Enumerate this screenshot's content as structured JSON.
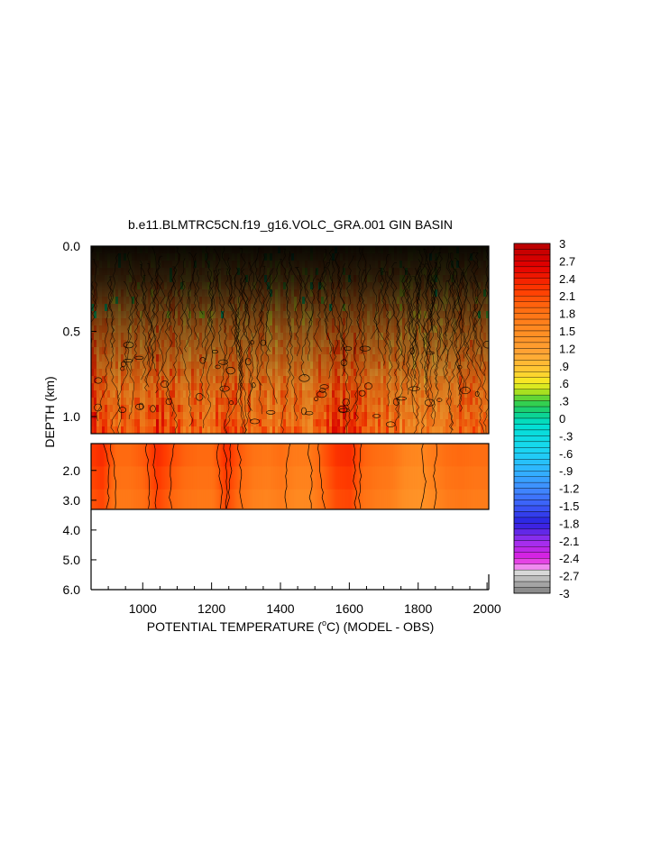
{
  "chart_data": {
    "type": "heatmap",
    "title": "b.e11.BLMTRC5CN.f19_g16.VOLC_GRA.001 GIN BASIN",
    "xlabel": {
      "before": "POTENTIAL TEMPERATURE (",
      "sup": "o",
      "after": "C) (MODEL - OBS)"
    },
    "ylabel": "DEPTH (km)",
    "xlim": [
      850,
      2005
    ],
    "x_ticks": [
      1000,
      1200,
      1400,
      1600,
      1800,
      2000
    ],
    "x_tick_labels": [
      "1000",
      "1200",
      "1400",
      "1600",
      "1800",
      "2000"
    ],
    "upper_panel": {
      "depth_range_km": [
        0.0,
        1.1
      ],
      "y_ticks": [
        0.0,
        0.5,
        1.0
      ],
      "y_tick_labels": [
        "0.0",
        "0.5",
        "1.0"
      ]
    },
    "lower_panel": {
      "depth_range_km": [
        1.1,
        6.0
      ],
      "data_bottom_km": 3.4,
      "y_ticks": [
        2.0,
        3.0,
        4.0,
        5.0,
        6.0
      ],
      "y_tick_labels": [
        "2.0",
        "3.0",
        "4.0",
        "5.0",
        "6.0"
      ]
    },
    "colorbar": {
      "min": -3.0,
      "max": 3.0,
      "labels": [
        "3",
        "2.7",
        "2.4",
        "2.1",
        "1.8",
        "1.5",
        "1.2",
        ".9",
        ".6",
        ".3",
        "0",
        "-.3",
        "-.6",
        "-.9",
        "-1.2",
        "-1.5",
        "-1.8",
        "-2.1",
        "-2.4",
        "-2.7",
        "-3"
      ],
      "stops": [
        {
          "v": 3.0,
          "c": "#b80000"
        },
        {
          "v": 2.6,
          "c": "#e40000"
        },
        {
          "v": 2.2,
          "c": "#ff3a00"
        },
        {
          "v": 1.9,
          "c": "#ff6a10"
        },
        {
          "v": 1.5,
          "c": "#ff8c22"
        },
        {
          "v": 1.1,
          "c": "#ffa535"
        },
        {
          "v": 0.8,
          "c": "#ffcc33"
        },
        {
          "v": 0.6,
          "c": "#f4ee20"
        },
        {
          "v": 0.45,
          "c": "#a8e020"
        },
        {
          "v": 0.3,
          "c": "#3fd040"
        },
        {
          "v": 0.1,
          "c": "#10d080"
        },
        {
          "v": -0.1,
          "c": "#00e0d0"
        },
        {
          "v": -0.5,
          "c": "#18d8f0"
        },
        {
          "v": -0.9,
          "c": "#30b4ff"
        },
        {
          "v": -1.2,
          "c": "#3f8cff"
        },
        {
          "v": -1.5,
          "c": "#3c5cf8"
        },
        {
          "v": -1.8,
          "c": "#2a20e0"
        },
        {
          "v": -2.1,
          "c": "#9a30f0"
        },
        {
          "v": -2.4,
          "c": "#e020e0"
        },
        {
          "v": -2.55,
          "c": "#f08af0"
        },
        {
          "v": -2.65,
          "c": "#d8d8d8"
        },
        {
          "v": -2.8,
          "c": "#b0b0b0"
        },
        {
          "v": -3.0,
          "c": "#808080"
        }
      ]
    },
    "lower_band_profile": {
      "x": [
        850,
        880,
        920,
        960,
        1000,
        1040,
        1080,
        1120,
        1160,
        1200,
        1240,
        1280,
        1320,
        1360,
        1400,
        1440,
        1480,
        1520,
        1560,
        1600,
        1640,
        1680,
        1720,
        1760,
        1800,
        1840,
        1880,
        1920,
        1960,
        2005
      ],
      "values": [
        2.2,
        2.3,
        1.9,
        1.9,
        2.0,
        2.3,
        2.1,
        1.95,
        1.9,
        1.9,
        2.3,
        2.0,
        1.8,
        1.75,
        1.85,
        1.7,
        1.7,
        2.0,
        2.25,
        2.3,
        1.95,
        1.85,
        1.8,
        1.6,
        1.55,
        1.7,
        1.85,
        1.9,
        1.85,
        1.85
      ]
    }
  }
}
